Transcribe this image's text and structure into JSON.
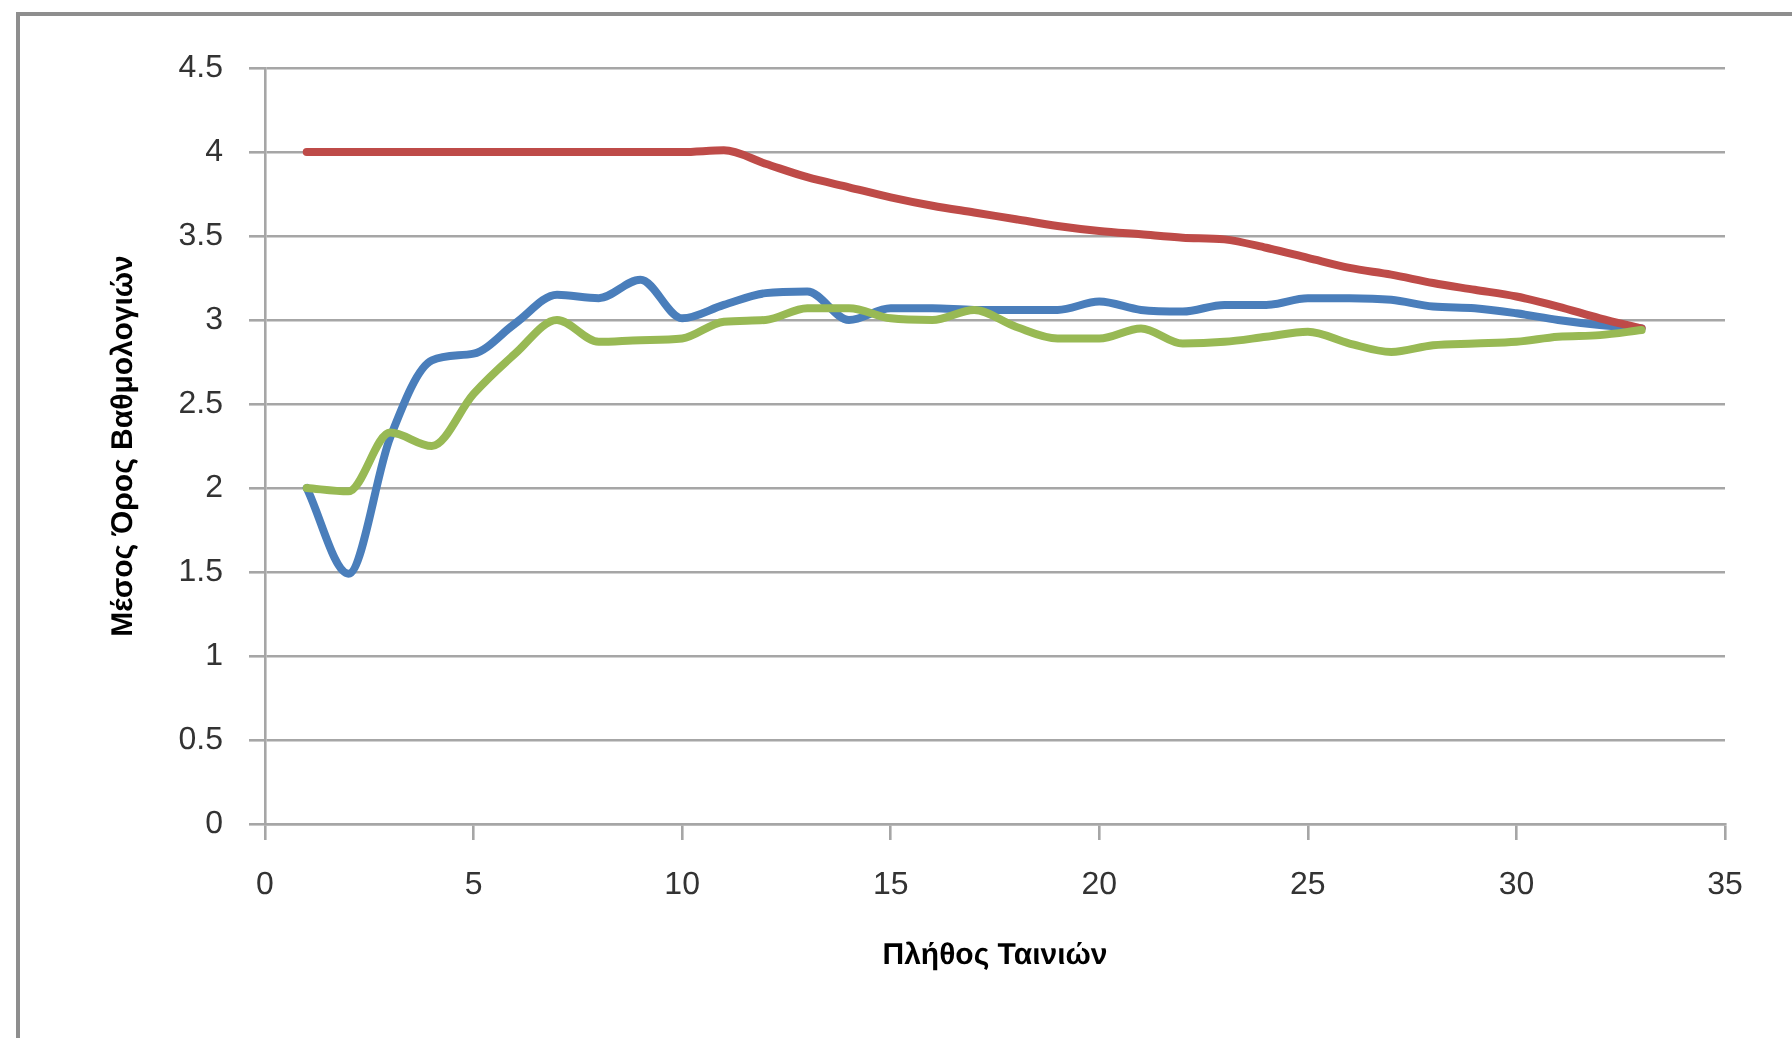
{
  "chart_data": {
    "type": "line",
    "xlabel": "Πλήθος Ταινιών",
    "ylabel": "Μέσος Όρος Βαθμολογιών",
    "x": [
      1,
      2,
      3,
      4,
      5,
      6,
      7,
      8,
      9,
      10,
      11,
      12,
      13,
      14,
      15,
      16,
      17,
      18,
      19,
      20,
      21,
      22,
      23,
      24,
      25,
      26,
      27,
      28,
      29,
      30,
      31,
      32,
      33
    ],
    "series": [
      {
        "color": "#4a7ebb",
        "values": [
          2.0,
          1.49,
          2.3,
          2.76,
          2.8,
          2.98,
          3.15,
          3.13,
          3.24,
          3.01,
          3.09,
          3.16,
          3.17,
          3.0,
          3.07,
          3.07,
          3.06,
          3.06,
          3.06,
          3.11,
          3.06,
          3.05,
          3.09,
          3.09,
          3.13,
          3.13,
          3.12,
          3.08,
          3.07,
          3.04,
          3.0,
          2.97,
          2.95
        ]
      },
      {
        "color": "#be4b48",
        "values": [
          4,
          4,
          4,
          4,
          4,
          4,
          4,
          4,
          4,
          4,
          4.01,
          3.93,
          3.85,
          3.79,
          3.73,
          3.68,
          3.64,
          3.6,
          3.56,
          3.53,
          3.51,
          3.49,
          3.48,
          3.43,
          3.37,
          3.31,
          3.27,
          3.22,
          3.18,
          3.14,
          3.08,
          3.01,
          2.95
        ]
      },
      {
        "color": "#98b954",
        "values": [
          2.0,
          1.98,
          2.33,
          2.25,
          2.56,
          2.8,
          3.0,
          2.87,
          2.88,
          2.89,
          2.99,
          3.0,
          3.07,
          3.07,
          3.01,
          3.0,
          3.06,
          2.96,
          2.89,
          2.89,
          2.95,
          2.86,
          2.87,
          2.9,
          2.93,
          2.86,
          2.81,
          2.85,
          2.86,
          2.87,
          2.9,
          2.91,
          2.94
        ]
      }
    ],
    "xlim": [
      0,
      35
    ],
    "xticks": [
      0,
      5,
      10,
      15,
      20,
      25,
      30,
      35
    ],
    "ylim": [
      0,
      4.5
    ],
    "yticks": [
      0,
      0.5,
      1,
      1.5,
      2,
      2.5,
      3,
      3.5,
      4,
      4.5
    ],
    "grid": "y"
  }
}
